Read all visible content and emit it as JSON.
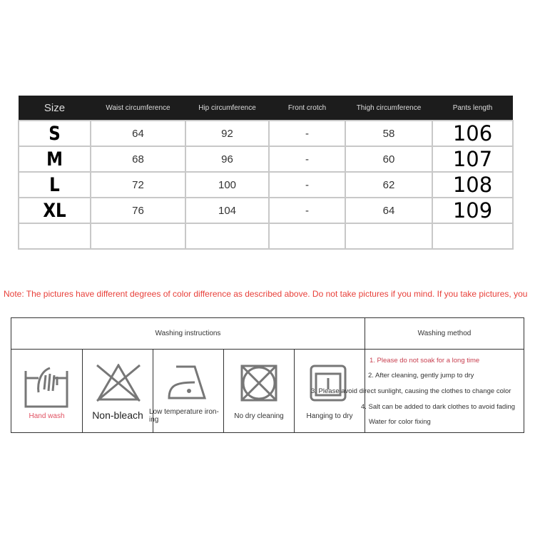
{
  "size_table": {
    "headers": [
      "Size",
      "Waist circumference",
      "Hip circumference",
      "Front crotch",
      "Thigh circumference",
      "Pants length"
    ],
    "rows": [
      [
        "S",
        "64",
        "92",
        "-",
        "58",
        "106"
      ],
      [
        "M",
        "68",
        "96",
        "-",
        "60",
        "107"
      ],
      [
        "L",
        "72",
        "100",
        "-",
        "62",
        "108"
      ],
      [
        "XL",
        "76",
        "104",
        "-",
        "64",
        "109"
      ],
      [
        "",
        "",
        "",
        "",
        "",
        ""
      ]
    ]
  },
  "note": "Note: The pictures have different degrees of color difference as described above. Do not take pictures if you mind. If you take pictures, you",
  "washing": {
    "instructions_header": "Washing instructions",
    "method_header": "Washing method",
    "symbols": [
      {
        "icon": "hand-wash-icon",
        "label": "Hand wash"
      },
      {
        "icon": "no-bleach-icon",
        "label": "Non-bleach"
      },
      {
        "icon": "low-temp-iron-icon",
        "label": "Low temperature iron-ing"
      },
      {
        "icon": "no-dry-clean-icon",
        "label": "No dry cleaning"
      },
      {
        "icon": "hang-dry-icon",
        "label": "Hanging to dry"
      }
    ],
    "methods": [
      "1. Please do not soak for a long time",
      "2. After cleaning, gently jump to dry",
      "3. Please avoid direct sunlight, causing the clothes to change color",
      "4. Salt can be added to dark clothes to avoid fading",
      "Water for color fixing"
    ]
  }
}
